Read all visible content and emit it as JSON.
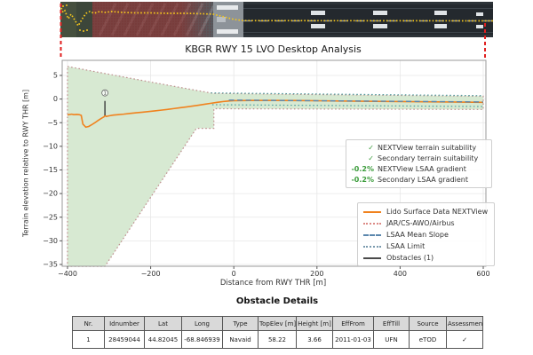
{
  "figure": {
    "title": "KBGR RWY 15 LVO Desktop Analysis"
  },
  "chart_data": {
    "type": "line",
    "title": "KBGR RWY 15 LVO Desktop Analysis",
    "xlabel": "Distance from RWY THR [m]",
    "ylabel": "Terrain elevation relative to RWY THR [m]",
    "xlim": [
      -400,
      600
    ],
    "ylim": [
      -35,
      8
    ],
    "xticks": [
      -400,
      -200,
      0,
      200,
      400,
      600
    ],
    "yticks": [
      5,
      0,
      -5,
      -10,
      -15,
      -20,
      -25,
      -30,
      -35
    ],
    "grid": true,
    "suitability_area": {
      "name": "terrain suitability corridor",
      "fill": "#d7e9d2",
      "edge_color": "#bf8f8f",
      "polygon": [
        [
          -400,
          6.9
        ],
        [
          -200,
          3.6
        ],
        [
          -50,
          1.2
        ],
        [
          200,
          0.95
        ],
        [
          600,
          0.6
        ],
        [
          600,
          -2.2
        ],
        [
          -48,
          -2.05
        ],
        [
          -48,
          -6.2
        ],
        [
          -90,
          -6.2
        ],
        [
          -310,
          -35.4
        ],
        [
          -400,
          -35.4
        ]
      ]
    },
    "series": [
      {
        "name": "Lido Surface Data NEXTView",
        "color": "#f0821e",
        "dash": "solid",
        "width": 1.6,
        "points": [
          [
            -400,
            -3.35
          ],
          [
            -390,
            -3.2
          ],
          [
            -385,
            -3.3
          ],
          [
            -378,
            -3.25
          ],
          [
            -372,
            -3.3
          ],
          [
            -367,
            -3.45
          ],
          [
            -363,
            -5.3
          ],
          [
            -356,
            -5.95
          ],
          [
            -349,
            -5.8
          ],
          [
            -342,
            -5.45
          ],
          [
            -334,
            -5.0
          ],
          [
            -326,
            -4.5
          ],
          [
            -318,
            -4.05
          ],
          [
            -312,
            -3.75
          ],
          [
            -310,
            -3.45
          ],
          [
            -307,
            -3.7
          ],
          [
            -300,
            -3.55
          ],
          [
            -290,
            -3.4
          ],
          [
            -278,
            -3.3
          ],
          [
            -265,
            -3.2
          ],
          [
            -250,
            -3.05
          ],
          [
            -235,
            -2.9
          ],
          [
            -220,
            -2.78
          ],
          [
            -205,
            -2.65
          ],
          [
            -190,
            -2.5
          ],
          [
            -175,
            -2.35
          ],
          [
            -160,
            -2.2
          ],
          [
            -145,
            -2.02
          ],
          [
            -130,
            -1.85
          ],
          [
            -115,
            -1.68
          ],
          [
            -100,
            -1.5
          ],
          [
            -85,
            -1.3
          ],
          [
            -70,
            -1.1
          ],
          [
            -55,
            -0.9
          ],
          [
            -40,
            -0.7
          ],
          [
            -25,
            -0.52
          ],
          [
            -10,
            -0.4
          ],
          [
            0,
            -0.35
          ],
          [
            40,
            -0.3
          ],
          [
            100,
            -0.3
          ],
          [
            160,
            -0.33
          ],
          [
            220,
            -0.38
          ],
          [
            280,
            -0.43
          ],
          [
            340,
            -0.48
          ],
          [
            400,
            -0.53
          ],
          [
            460,
            -0.58
          ],
          [
            520,
            -0.63
          ],
          [
            600,
            -0.7
          ]
        ]
      },
      {
        "name": "JAR/CS-AWO/Airbus",
        "color": "#bf8f8f",
        "dash": "dotted",
        "width": 1.2,
        "note": "drawn as dotted boundary of the suitability polygon"
      },
      {
        "name": "LSAA Mean Slope",
        "color": "#5b87ad",
        "dash": "dashed",
        "width": 1.4,
        "points": [
          [
            -12,
            -0.22
          ],
          [
            600,
            -0.62
          ]
        ]
      },
      {
        "name": "LSAA Limit",
        "color": "#54a0a0",
        "dash": "dotted",
        "width": 1.2,
        "points_upper": [
          [
            -55,
            1.3
          ],
          [
            600,
            0.72
          ]
        ],
        "points_lower": [
          [
            -52,
            -1.2
          ],
          [
            600,
            -1.58
          ]
        ]
      },
      {
        "name": "Obstacles (1)",
        "color": "#3a3a3a",
        "dash": "solid",
        "width": 1.4,
        "points": [
          [
            -310,
            -3.45
          ],
          [
            -310,
            -0.4
          ]
        ],
        "label": "1",
        "label_pos": [
          -310,
          1.3
        ]
      }
    ]
  },
  "connectors": {
    "color": "#e01f1f"
  },
  "legend_suitability": {
    "marker_color": "#3c9c3c",
    "rows": [
      {
        "marker": "✓",
        "label": "NEXTView terrain suitability"
      },
      {
        "marker": "✓",
        "label": "Secondary terrain suitability"
      },
      {
        "marker": "-0.2%",
        "label": "NEXTView LSAA gradient"
      },
      {
        "marker": "-0.2%",
        "label": "Secondary LSAA gradient"
      }
    ]
  },
  "legend_lines": {
    "rows": [
      {
        "style": "solid",
        "color": "#f0821e",
        "label": "Lido Surface Data NEXTView"
      },
      {
        "style": "dotted",
        "color": "#dc8a86",
        "label": "JAR/CS-AWO/Airbus"
      },
      {
        "style": "dashed",
        "color": "#5b87ad",
        "label": "LSAA Mean Slope"
      },
      {
        "style": "dotted",
        "color": "#7a9aae",
        "label": "LSAA Limit"
      },
      {
        "style": "solid",
        "color": "#4a4a4a",
        "label": "Obstacles (1)"
      }
    ]
  },
  "obstacle_table": {
    "title": "Obstacle Details",
    "headers": [
      "Nr.",
      "Idnumber",
      "Lat",
      "Long",
      "Type",
      "TopElev [m]",
      "Height [m]",
      "EffFrom",
      "EffTill",
      "Source",
      "Assessment"
    ],
    "rows": [
      [
        "1",
        "28459044",
        "44.82045",
        "-68.846939",
        "Navaid",
        "58.22",
        "3.66",
        "2011-01-03",
        "UFN",
        "eTOD",
        "✓"
      ]
    ]
  }
}
